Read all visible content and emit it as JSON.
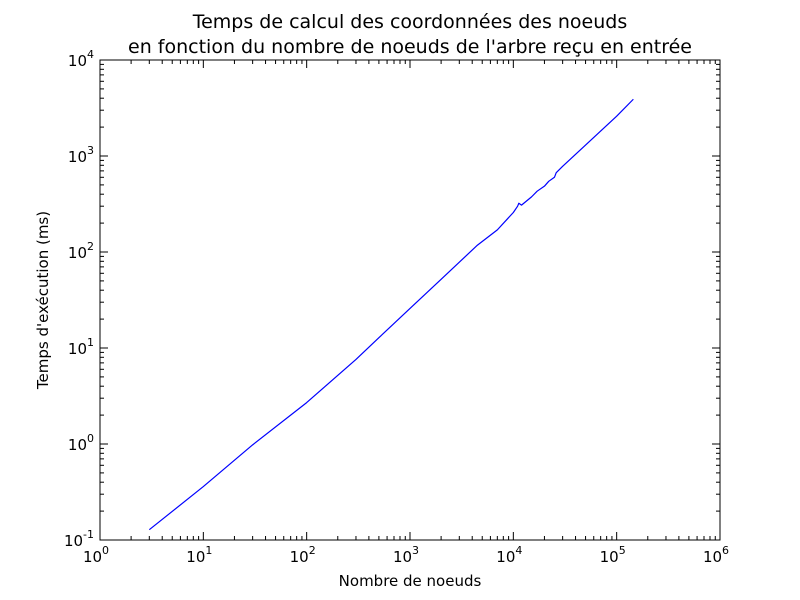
{
  "chart_data": {
    "type": "line",
    "title": [
      "Temps de calcul des coordonnées des noeuds",
      "en fonction du nombre de noeuds de l'arbre reçu en entrée"
    ],
    "xlabel": "Nombre de noeuds",
    "ylabel": "Temps d'exécution (ms)",
    "x_scale": "log",
    "y_scale": "log",
    "xlim": [
      1,
      1000000
    ],
    "ylim": [
      0.1,
      10000
    ],
    "x_ticks": [
      {
        "value": 1,
        "base": "10",
        "exp": "0"
      },
      {
        "value": 10,
        "base": "10",
        "exp": "1"
      },
      {
        "value": 100,
        "base": "10",
        "exp": "2"
      },
      {
        "value": 1000,
        "base": "10",
        "exp": "3"
      },
      {
        "value": 10000,
        "base": "10",
        "exp": "4"
      },
      {
        "value": 100000,
        "base": "10",
        "exp": "5"
      },
      {
        "value": 1000000,
        "base": "10",
        "exp": "6"
      }
    ],
    "y_ticks": [
      {
        "value": 0.1,
        "base": "10",
        "exp": "-1"
      },
      {
        "value": 1,
        "base": "10",
        "exp": "0"
      },
      {
        "value": 10,
        "base": "10",
        "exp": "1"
      },
      {
        "value": 100,
        "base": "10",
        "exp": "2"
      },
      {
        "value": 1000,
        "base": "10",
        "exp": "3"
      },
      {
        "value": 10000,
        "base": "10",
        "exp": "4"
      }
    ],
    "grid": false,
    "series": [
      {
        "color": "#0000ff",
        "x": [
          3,
          10,
          30,
          100,
          300,
          500,
          1000,
          2000,
          4500,
          7000,
          10000,
          11000,
          11300,
          12000,
          15000,
          17000,
          20000,
          22000,
          25000,
          26000,
          30000,
          50000,
          100000,
          145000
        ],
        "y": [
          0.128,
          0.36,
          0.98,
          2.7,
          7.6,
          12.8,
          25.8,
          52,
          118,
          170,
          258,
          300,
          322,
          308,
          375,
          430,
          485,
          545,
          600,
          670,
          780,
          1300,
          2600,
          3900
        ]
      }
    ]
  }
}
